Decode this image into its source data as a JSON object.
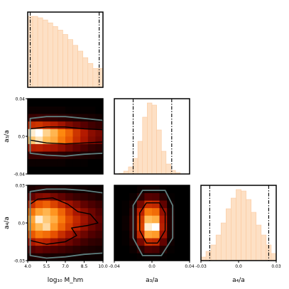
{
  "chart_data": {
    "type": "corner",
    "parameters": [
      {
        "label": "log₁₀ M_hm",
        "range": [
          4.0,
          10.0
        ],
        "ticks": [
          "4.0",
          "5.5",
          "7.0",
          "8.5",
          "10.0"
        ],
        "tick_values": [
          4.0,
          5.5,
          7.0,
          8.5,
          10.0
        ]
      },
      {
        "label": "a₃/a",
        "range": [
          -0.04,
          0.04
        ],
        "ticks": [
          "-0.04",
          "0.0",
          "0.04"
        ],
        "tick_values": [
          -0.04,
          0.0,
          0.04
        ]
      },
      {
        "label": "a₄/a",
        "range": [
          -0.03,
          0.03
        ],
        "ticks": [
          "-0.03",
          "0.0",
          "0.03"
        ],
        "tick_values": [
          -0.03,
          0.0,
          0.03
        ]
      }
    ],
    "histograms": [
      {
        "bin_edges": [
          4.0,
          4.4,
          4.8,
          5.2,
          5.6,
          6.0,
          6.4,
          6.8,
          7.2,
          7.6,
          8.0,
          8.4,
          8.8,
          9.2,
          9.6,
          10.0
        ],
        "counts": [
          0.98,
          0.98,
          0.96,
          0.93,
          0.89,
          0.84,
          0.79,
          0.73,
          0.66,
          0.58,
          0.5,
          0.41,
          0.33,
          0.26,
          0.26
        ],
        "lower_line": 4.2,
        "upper_line": 9.7
      },
      {
        "bin_edges": [
          -0.035,
          -0.03,
          -0.025,
          -0.02,
          -0.015,
          -0.01,
          -0.005,
          0.0,
          0.005,
          0.01,
          0.015,
          0.02,
          0.025,
          0.03
        ],
        "counts": [
          0.01,
          0.04,
          0.1,
          0.22,
          0.46,
          0.8,
          1.0,
          0.97,
          0.62,
          0.32,
          0.14,
          0.05,
          0.02
        ],
        "lower_line": -0.02,
        "upper_line": 0.021
      },
      {
        "bin_edges": [
          -0.03,
          -0.026,
          -0.022,
          -0.018,
          -0.014,
          -0.01,
          -0.006,
          -0.002,
          0.002,
          0.006,
          0.01,
          0.014,
          0.018,
          0.022,
          0.026,
          0.03
        ],
        "counts": [
          0.05,
          0.13,
          0.22,
          0.36,
          0.53,
          0.73,
          0.88,
          1.0,
          0.98,
          0.86,
          0.68,
          0.5,
          0.36,
          0.22,
          0.1
        ],
        "lower_line": -0.023,
        "upper_line": 0.024
      }
    ],
    "heatmaps": [
      {
        "x_param": 0,
        "y_param": 1,
        "x_edges": [
          4.0,
          4.6,
          5.2,
          5.8,
          6.4,
          7.0,
          7.6,
          8.2,
          8.8,
          9.4,
          10.0
        ],
        "y_edges": [
          -0.04,
          -0.032,
          -0.024,
          -0.016,
          -0.008,
          0.0,
          0.008,
          0.016,
          0.024,
          0.032,
          0.04
        ],
        "density": [
          [
            0.0,
            0.0,
            0.0,
            0.0,
            0.0,
            0.0,
            0.0,
            0.0,
            0.0,
            0.0
          ],
          [
            0.02,
            0.02,
            0.02,
            0.02,
            0.02,
            0.01,
            0.01,
            0.01,
            0.0,
            0.0
          ],
          [
            0.1,
            0.1,
            0.09,
            0.09,
            0.08,
            0.07,
            0.06,
            0.05,
            0.04,
            0.03
          ],
          [
            0.35,
            0.36,
            0.33,
            0.31,
            0.27,
            0.22,
            0.18,
            0.14,
            0.1,
            0.08
          ],
          [
            0.85,
            0.92,
            0.82,
            0.76,
            0.62,
            0.52,
            0.4,
            0.32,
            0.24,
            0.2
          ],
          [
            0.95,
            1.0,
            0.88,
            0.8,
            0.66,
            0.56,
            0.42,
            0.34,
            0.26,
            0.22
          ],
          [
            0.4,
            0.42,
            0.38,
            0.35,
            0.3,
            0.24,
            0.2,
            0.16,
            0.12,
            0.1
          ],
          [
            0.1,
            0.11,
            0.1,
            0.09,
            0.08,
            0.07,
            0.06,
            0.05,
            0.04,
            0.03
          ],
          [
            0.02,
            0.02,
            0.02,
            0.02,
            0.02,
            0.01,
            0.01,
            0.01,
            0.01,
            0.0
          ],
          [
            0.0,
            0.0,
            0.0,
            0.0,
            0.0,
            0.0,
            0.0,
            0.0,
            0.0,
            0.0
          ]
        ],
        "contours": [
          {
            "level": "inner",
            "points": [
              [
                4.2,
                -0.004
              ],
              [
                5.5,
                -0.007
              ],
              [
                7.0,
                -0.008
              ],
              [
                8.5,
                -0.007
              ],
              [
                10.0,
                -0.006
              ],
              [
                10.0,
                0.007
              ],
              [
                8.5,
                0.008
              ],
              [
                7.0,
                0.01
              ],
              [
                5.5,
                0.01
              ],
              [
                4.2,
                0.008
              ]
            ]
          },
          {
            "level": "outer",
            "points": [
              [
                4.2,
                -0.018
              ],
              [
                5.5,
                -0.02
              ],
              [
                7.0,
                -0.021
              ],
              [
                8.5,
                -0.019
              ],
              [
                10.0,
                -0.018
              ],
              [
                10.0,
                0.017
              ],
              [
                8.5,
                0.019
              ],
              [
                7.0,
                0.021
              ],
              [
                5.5,
                0.021
              ],
              [
                4.2,
                0.019
              ]
            ]
          }
        ]
      },
      {
        "x_param": 0,
        "y_param": 2,
        "x_edges": [
          4.0,
          4.6,
          5.2,
          5.8,
          6.4,
          7.0,
          7.6,
          8.2,
          8.8,
          9.4,
          10.0
        ],
        "y_edges": [
          -0.03,
          -0.024,
          -0.018,
          -0.012,
          -0.006,
          0.0,
          0.006,
          0.012,
          0.018,
          0.024,
          0.03
        ],
        "density": [
          [
            0.05,
            0.06,
            0.05,
            0.04,
            0.04,
            0.03,
            0.03,
            0.02,
            0.02,
            0.02
          ],
          [
            0.15,
            0.18,
            0.16,
            0.14,
            0.12,
            0.1,
            0.08,
            0.06,
            0.05,
            0.04
          ],
          [
            0.32,
            0.38,
            0.36,
            0.3,
            0.25,
            0.2,
            0.16,
            0.12,
            0.09,
            0.08
          ],
          [
            0.52,
            0.62,
            0.58,
            0.5,
            0.4,
            0.32,
            0.25,
            0.2,
            0.15,
            0.12
          ],
          [
            0.7,
            0.82,
            0.9,
            0.72,
            0.56,
            0.44,
            0.36,
            0.28,
            0.2,
            0.16
          ],
          [
            0.75,
            0.95,
            0.86,
            0.78,
            0.62,
            0.48,
            0.38,
            0.3,
            0.22,
            0.18
          ],
          [
            0.6,
            0.74,
            0.8,
            0.7,
            0.56,
            0.42,
            0.32,
            0.26,
            0.2,
            0.15
          ],
          [
            0.4,
            0.5,
            0.55,
            0.46,
            0.38,
            0.3,
            0.24,
            0.18,
            0.14,
            0.11
          ],
          [
            0.18,
            0.24,
            0.26,
            0.22,
            0.18,
            0.14,
            0.11,
            0.09,
            0.07,
            0.05
          ],
          [
            0.05,
            0.07,
            0.07,
            0.06,
            0.05,
            0.04,
            0.03,
            0.03,
            0.02,
            0.02
          ]
        ],
        "contours": [
          {
            "level": "inner",
            "points": [
              [
                4.2,
                -0.014
              ],
              [
                5.5,
                -0.017
              ],
              [
                7.0,
                -0.015
              ],
              [
                7.9,
                -0.01
              ],
              [
                7.5,
                -0.004
              ],
              [
                8.8,
                -0.002
              ],
              [
                9.6,
                0.0
              ],
              [
                9.0,
                0.007
              ],
              [
                8.0,
                0.009
              ],
              [
                7.2,
                0.015
              ],
              [
                6.0,
                0.02
              ],
              [
                4.8,
                0.019
              ],
              [
                4.2,
                0.015
              ]
            ]
          },
          {
            "level": "outer",
            "points": [
              [
                4.2,
                -0.026
              ],
              [
                5.5,
                -0.028
              ],
              [
                7.0,
                -0.027
              ],
              [
                8.5,
                -0.025
              ],
              [
                10.0,
                -0.024
              ],
              [
                10.0,
                0.024
              ],
              [
                8.5,
                0.026
              ],
              [
                7.0,
                0.027
              ],
              [
                5.5,
                0.027
              ],
              [
                4.2,
                0.025
              ]
            ]
          }
        ]
      },
      {
        "x_param": 1,
        "y_param": 2,
        "x_edges": [
          -0.04,
          -0.032,
          -0.024,
          -0.016,
          -0.008,
          0.0,
          0.008,
          0.016,
          0.024,
          0.032,
          0.04
        ],
        "y_edges": [
          -0.03,
          -0.024,
          -0.018,
          -0.012,
          -0.006,
          0.0,
          0.006,
          0.012,
          0.018,
          0.024,
          0.03
        ],
        "density": [
          [
            0.0,
            0.0,
            0.0,
            0.01,
            0.02,
            0.02,
            0.01,
            0.0,
            0.0,
            0.0
          ],
          [
            0.0,
            0.0,
            0.02,
            0.08,
            0.14,
            0.13,
            0.06,
            0.01,
            0.0,
            0.0
          ],
          [
            0.0,
            0.01,
            0.05,
            0.22,
            0.4,
            0.38,
            0.18,
            0.03,
            0.0,
            0.0
          ],
          [
            0.0,
            0.01,
            0.08,
            0.38,
            0.75,
            0.72,
            0.3,
            0.05,
            0.0,
            0.0
          ],
          [
            0.0,
            0.02,
            0.1,
            0.46,
            0.95,
            1.0,
            0.36,
            0.06,
            0.0,
            0.0
          ],
          [
            0.0,
            0.02,
            0.1,
            0.44,
            0.82,
            0.78,
            0.34,
            0.06,
            0.0,
            0.0
          ],
          [
            0.0,
            0.01,
            0.08,
            0.36,
            0.62,
            0.58,
            0.28,
            0.05,
            0.0,
            0.0
          ],
          [
            0.0,
            0.01,
            0.05,
            0.22,
            0.4,
            0.38,
            0.18,
            0.03,
            0.0,
            0.0
          ],
          [
            0.0,
            0.0,
            0.02,
            0.08,
            0.16,
            0.15,
            0.07,
            0.01,
            0.0,
            0.0
          ],
          [
            0.0,
            0.0,
            0.0,
            0.02,
            0.03,
            0.03,
            0.01,
            0.0,
            0.0,
            0.0
          ]
        ],
        "contours": [
          {
            "level": "inner",
            "points": [
              [
                -0.006,
                -0.016
              ],
              [
                0.006,
                -0.016
              ],
              [
                0.014,
                -0.006
              ],
              [
                0.014,
                0.008
              ],
              [
                0.008,
                0.016
              ],
              [
                -0.006,
                0.016
              ],
              [
                -0.013,
                0.008
              ],
              [
                -0.013,
                -0.006
              ]
            ]
          },
          {
            "level": "outer",
            "points": [
              [
                -0.01,
                -0.026
              ],
              [
                0.01,
                -0.026
              ],
              [
                0.022,
                -0.012
              ],
              [
                0.022,
                0.014
              ],
              [
                0.014,
                0.026
              ],
              [
                -0.01,
                0.026
              ],
              [
                -0.02,
                0.014
              ],
              [
                -0.02,
                -0.012
              ]
            ]
          }
        ]
      }
    ],
    "colors": {
      "hist_fill": "#fde0c5",
      "hist_edge": "#fbc99e",
      "marker_line": "#000000",
      "contour_inner": "#000000",
      "contour_outer": "#5f7f7f",
      "colormap": [
        "#000000",
        "#5a0000",
        "#b21800",
        "#e65000",
        "#ff8a10",
        "#ffc060",
        "#ffffff"
      ]
    },
    "grid": false,
    "legend": "none"
  }
}
